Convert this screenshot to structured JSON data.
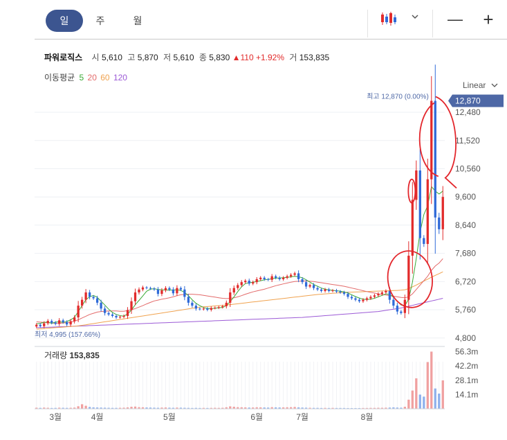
{
  "tabs": [
    {
      "label": "일",
      "active": true
    },
    {
      "label": "주",
      "active": false
    },
    {
      "label": "월",
      "active": false
    }
  ],
  "toolbar": {
    "chart_type_icon": "candlestick-icon",
    "dropdown_icon": "chevron-down-icon",
    "zoom_out": "—",
    "zoom_in": "+"
  },
  "info": {
    "name": "파워로직스",
    "open_label": "시",
    "open": "5,610",
    "high_label": "고",
    "high": "5,870",
    "low_label": "저",
    "low": "5,610",
    "close_label": "종",
    "close": "5,830",
    "change": "▲110",
    "change_pct": "+1.92%",
    "volume_label": "거",
    "volume": "153,835"
  },
  "ma": {
    "label": "이동평균",
    "p5": "5",
    "p20": "20",
    "p60": "60",
    "p120": "120"
  },
  "scale_label": "Linear",
  "colors": {
    "up": "#e22b2b",
    "down": "#2f6ad8",
    "ma5": "#3aaa35",
    "ma20": "#e36a6a",
    "ma60": "#f0a24e",
    "ma120": "#9b59d6",
    "accent": "#4e68a6",
    "annotation": "#e3262c"
  },
  "chart_data": {
    "type": "candlestick",
    "x_axis": {
      "tick_labels": [
        "3월",
        "4월",
        "5월",
        "6월",
        "7월",
        "8월"
      ]
    },
    "y_axis": {
      "ticks": [
        4800,
        5760,
        6720,
        7680,
        8640,
        9600,
        10560,
        11520,
        12480
      ],
      "tick_labels": [
        "4,800",
        "5,760",
        "6,720",
        "7,680",
        "8,640",
        "9,600",
        "10,560",
        "11,520",
        "12,480"
      ],
      "range": [
        4700,
        13000
      ]
    },
    "current_price": {
      "value": 12870,
      "label": "12,870"
    },
    "max_label": "최고 12,870 (0.00%)",
    "min_label": "최저 4,995 (157.66%)",
    "volume": {
      "label": "거래량",
      "value": "153,835",
      "tick_labels": [
        "56.3m",
        "42.2m",
        "28.1m",
        "14.1m"
      ],
      "ticks_m": [
        56.3,
        42.2,
        28.1,
        14.1
      ],
      "range_m": [
        0,
        60
      ]
    },
    "closes": [
      5250,
      5200,
      5300,
      5380,
      5320,
      5280,
      5400,
      5340,
      5260,
      5370,
      5500,
      5900,
      6100,
      6350,
      6200,
      6150,
      6000,
      5800,
      5650,
      5600,
      5550,
      5500,
      5520,
      5550,
      5750,
      6050,
      6350,
      6450,
      6520,
      6500,
      6480,
      6450,
      6300,
      6420,
      6500,
      6450,
      6320,
      6500,
      6450,
      6200,
      6000,
      5900,
      5800,
      5780,
      5800,
      5760,
      5820,
      5830,
      5850,
      5880,
      6000,
      6350,
      6500,
      6600,
      6700,
      6750,
      6650,
      6700,
      6800,
      6850,
      6800,
      6780,
      6900,
      6850,
      6800,
      6850,
      6900,
      6950,
      7000,
      6800,
      6700,
      6550,
      6600,
      6500,
      6450,
      6400,
      6450,
      6400,
      6420,
      6380,
      6350,
      6300,
      6200,
      6150,
      6100,
      6050,
      6100,
      6150,
      6200,
      6250,
      6300,
      6350,
      6400,
      6100,
      5900,
      5700,
      5650,
      6100,
      7600,
      9500,
      10500,
      8200,
      8000,
      10200,
      12870,
      8900,
      8500,
      9600
    ],
    "open_day_index": [
      5,
      16,
      35,
      58,
      70,
      87,
      107
    ],
    "ma5": [
      5280,
      5300,
      5330,
      5340,
      5300,
      5340,
      5350,
      5330,
      5360,
      5420,
      5500,
      5700,
      5900,
      6100,
      6200,
      6250,
      6180,
      6050,
      5920,
      5780,
      5670,
      5600,
      5560,
      5545,
      5620,
      5750,
      5930,
      6080,
      6230,
      6390,
      6460,
      6480,
      6450,
      6440,
      6430,
      6430,
      6430,
      6440,
      6420,
      6350,
      6240,
      6100,
      5980,
      5900,
      5840,
      5800,
      5800,
      5810,
      5830,
      5840,
      5900,
      6040,
      6200,
      6380,
      6540,
      6650,
      6680,
      6700,
      6720,
      6750,
      6780,
      6790,
      6820,
      6840,
      6840,
      6850,
      6860,
      6880,
      6900,
      6880,
      6850,
      6780,
      6700,
      6620,
      6560,
      6500,
      6460,
      6440,
      6420,
      6410,
      6390,
      6370,
      6330,
      6270,
      6210,
      6160,
      6120,
      6110,
      6120,
      6150,
      6200,
      6250,
      6300,
      6280,
      6190,
      6050,
      5920,
      5900,
      6120,
      6700,
      7500,
      8400,
      9000,
      9300,
      9950,
      9800,
      9700,
      9800
    ],
    "ma20": [
      5350,
      5340,
      5330,
      5320,
      5310,
      5300,
      5300,
      5310,
      5320,
      5340,
      5370,
      5420,
      5480,
      5540,
      5600,
      5640,
      5680,
      5700,
      5710,
      5720,
      5720,
      5720,
      5710,
      5710,
      5730,
      5760,
      5800,
      5850,
      5900,
      5960,
      6010,
      6060,
      6090,
      6120,
      6140,
      6170,
      6200,
      6240,
      6270,
      6280,
      6290,
      6290,
      6280,
      6270,
      6250,
      6230,
      6210,
      6190,
      6170,
      6150,
      6140,
      6150,
      6170,
      6200,
      6240,
      6290,
      6330,
      6370,
      6400,
      6430,
      6460,
      6500,
      6540,
      6580,
      6610,
      6640,
      6670,
      6700,
      6720,
      6730,
      6740,
      6740,
      6730,
      6720,
      6700,
      6680,
      6660,
      6640,
      6620,
      6600,
      6580,
      6560,
      6530,
      6500,
      6470,
      6440,
      6410,
      6380,
      6350,
      6330,
      6300,
      6280,
      6260,
      6240,
      6220,
      6200,
      6180,
      6170,
      6200,
      6300,
      6450,
      6600,
      6750,
      6900,
      7100,
      7250,
      7350,
      7500
    ],
    "ma60": [
      5100,
      5110,
      5120,
      5130,
      5140,
      5150,
      5160,
      5170,
      5180,
      5190,
      5200,
      5215,
      5230,
      5250,
      5270,
      5290,
      5310,
      5330,
      5350,
      5370,
      5390,
      5410,
      5430,
      5450,
      5470,
      5490,
      5510,
      5530,
      5550,
      5570,
      5590,
      5610,
      5630,
      5650,
      5670,
      5690,
      5710,
      5730,
      5750,
      5770,
      5790,
      5810,
      5830,
      5850,
      5860,
      5870,
      5880,
      5890,
      5900,
      5910,
      5920,
      5935,
      5950,
      5965,
      5980,
      5995,
      6010,
      6025,
      6040,
      6055,
      6070,
      6085,
      6100,
      6115,
      6130,
      6145,
      6160,
      6175,
      6190,
      6205,
      6220,
      6235,
      6250,
      6265,
      6280,
      6290,
      6300,
      6310,
      6320,
      6330,
      6340,
      6350,
      6355,
      6360,
      6365,
      6370,
      6375,
      6380,
      6385,
      6390,
      6395,
      6400,
      6405,
      6410,
      6415,
      6420,
      6425,
      6440,
      6480,
      6540,
      6600,
      6670,
      6740,
      6800,
      6870,
      6930,
      6990,
      7050
    ],
    "ma120": [
      5150,
      5155,
      5160,
      5165,
      5170,
      5175,
      5180,
      5185,
      5190,
      5195,
      5200,
      5205,
      5210,
      5215,
      5220,
      5225,
      5230,
      5235,
      5240,
      5245,
      5250,
      5255,
      5260,
      5265,
      5270,
      5275,
      5280,
      5285,
      5290,
      5295,
      5300,
      5305,
      5310,
      5315,
      5320,
      5325,
      5330,
      5335,
      5340,
      5345,
      5350,
      5355,
      5360,
      5365,
      5370,
      5375,
      5380,
      5385,
      5390,
      5395,
      5400,
      5405,
      5410,
      5415,
      5420,
      5425,
      5430,
      5435,
      5440,
      5445,
      5450,
      5455,
      5460,
      5465,
      5470,
      5475,
      5480,
      5485,
      5490,
      5495,
      5500,
      5510,
      5520,
      5530,
      5540,
      5550,
      5560,
      5570,
      5580,
      5590,
      5600,
      5610,
      5620,
      5630,
      5640,
      5650,
      5660,
      5670,
      5680,
      5690,
      5700,
      5720,
      5740,
      5760,
      5780,
      5800,
      5820,
      5850,
      5880,
      5910,
      5940,
      5970,
      6000,
      6030,
      6060,
      6090,
      6120,
      6150
    ],
    "volumes_m": [
      1.1,
      0.9,
      1.2,
      1.0,
      0.8,
      0.9,
      1.1,
      1.0,
      0.9,
      1.0,
      1.2,
      2.5,
      4.5,
      3.0,
      1.8,
      1.4,
      1.3,
      1.2,
      1.1,
      1.0,
      0.9,
      0.9,
      1.0,
      1.1,
      1.4,
      2.0,
      2.2,
      1.6,
      1.5,
      1.3,
      1.2,
      1.1,
      1.0,
      1.2,
      1.3,
      1.1,
      1.0,
      1.2,
      1.1,
      1.0,
      0.9,
      0.8,
      0.9,
      0.8,
      0.9,
      0.8,
      0.9,
      1.0,
      0.9,
      1.0,
      1.5,
      2.4,
      2.0,
      1.6,
      1.5,
      1.4,
      1.2,
      1.3,
      1.5,
      1.4,
      1.3,
      1.2,
      1.6,
      1.4,
      1.3,
      1.4,
      1.5,
      1.6,
      1.8,
      1.4,
      1.2,
      1.1,
      1.0,
      0.9,
      0.9,
      0.8,
      0.9,
      0.8,
      0.9,
      0.8,
      0.8,
      0.8,
      0.7,
      0.7,
      0.7,
      0.7,
      0.8,
      0.8,
      0.9,
      0.9,
      1.0,
      1.0,
      1.1,
      1.2,
      1.4,
      1.2,
      1.1,
      2.0,
      9.0,
      18.0,
      30.0,
      14.0,
      12.0,
      46.0,
      56.3,
      20.0,
      15.0,
      28.0
    ]
  },
  "annotations": [
    {
      "type": "ellipse",
      "note": "high wick"
    },
    {
      "type": "ellipse",
      "note": "small spike"
    },
    {
      "type": "ellipse",
      "note": "breakout candle"
    }
  ]
}
